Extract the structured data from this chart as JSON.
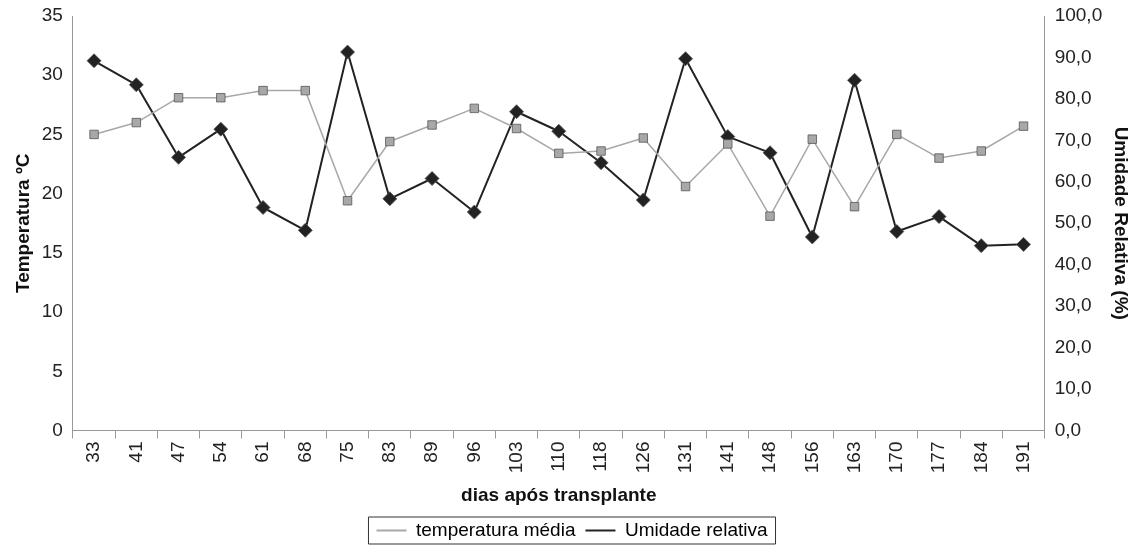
{
  "chart_data": {
    "type": "line",
    "xlabel": "dias após transplante",
    "ylabel": "Temperatura ºC",
    "y2label": "Umidade Relativa (%)",
    "categories": [
      "33",
      "41",
      "47",
      "54",
      "61",
      "68",
      "75",
      "83",
      "89",
      "96",
      "103",
      "110",
      "118",
      "126",
      "131",
      "141",
      "148",
      "156",
      "163",
      "170",
      "177",
      "184",
      "191"
    ],
    "series": [
      {
        "name": "temperatura média",
        "color": "#a8a8a8",
        "marker": "square",
        "values": [
          25.0,
          26.0,
          28.1,
          28.1,
          28.7,
          28.7,
          19.4,
          24.4,
          25.8,
          27.2,
          25.5,
          23.4,
          23.6,
          24.7,
          20.6,
          24.2,
          18.1,
          24.6,
          18.9,
          25.0,
          23.0,
          23.6,
          25.7
        ]
      },
      {
        "name": "Umidade relativa",
        "color": "#222222",
        "marker": "diamond",
        "axis": "y2",
        "values": [
          89.2,
          83.4,
          65.9,
          72.7,
          53.8,
          48.3,
          91.3,
          55.9,
          60.8,
          52.7,
          76.9,
          72.2,
          64.6,
          55.6,
          89.7,
          70.9,
          67.0,
          46.7,
          84.5,
          48.0,
          51.6,
          44.6,
          44.9
        ]
      }
    ],
    "ylim": [
      0,
      35
    ],
    "yticks": [
      0,
      5,
      10,
      15,
      20,
      25,
      30,
      35
    ],
    "y2lim": [
      0,
      100
    ],
    "y2ticks": [
      {
        "value": 0,
        "label": "0,0"
      },
      {
        "value": 10,
        "label": "10,0"
      },
      {
        "value": 20,
        "label": "20,0"
      },
      {
        "value": 30,
        "label": "30,0"
      },
      {
        "value": 40,
        "label": "40,0"
      },
      {
        "value": 50,
        "label": "50,0"
      },
      {
        "value": 60,
        "label": "60,0"
      },
      {
        "value": 70,
        "label": "70,0"
      },
      {
        "value": 80,
        "label": "80,0"
      },
      {
        "value": 90,
        "label": "90,0"
      },
      {
        "value": 100,
        "label": "100,0"
      }
    ],
    "grid": false,
    "legend": "bottom",
    "line_style": "solid"
  }
}
